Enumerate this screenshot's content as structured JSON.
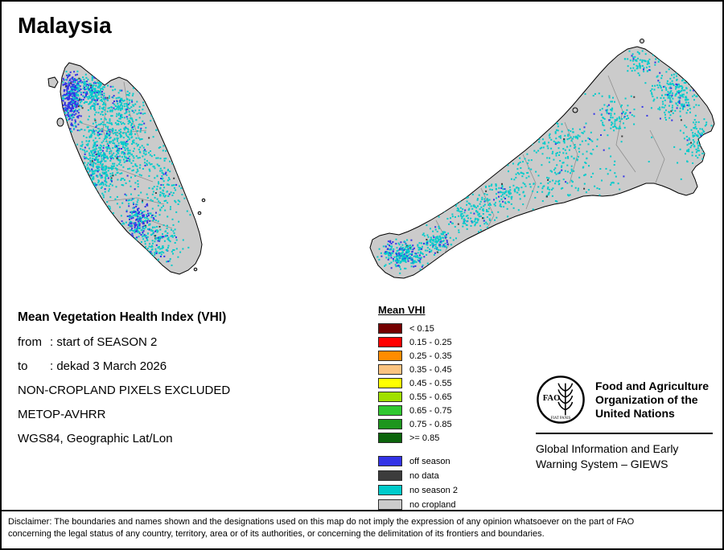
{
  "page": {
    "title": "Malaysia"
  },
  "meta": {
    "heading": "Mean Vegetation Health Index (VHI)",
    "from_label": "from",
    "from_value": ": start of SEASON 2",
    "to_label": "to",
    "to_value": ": dekad 3 March 2026",
    "exclusion": "NON-CROPLAND PIXELS EXCLUDED",
    "sensor": "METOP-AVHRR",
    "projection": "WGS84, Geographic Lat/Lon"
  },
  "legend": {
    "title": "Mean VHI",
    "classes": [
      {
        "label": "< 0.15",
        "color": "#740000"
      },
      {
        "label": "0.15 - 0.25",
        "color": "#FF0000"
      },
      {
        "label": "0.25 - 0.35",
        "color": "#FF8C00"
      },
      {
        "label": "0.35 - 0.45",
        "color": "#FBC380"
      },
      {
        "label": "0.45 - 0.55",
        "color": "#FFFF00"
      },
      {
        "label": "0.55 - 0.65",
        "color": "#A0E000"
      },
      {
        "label": "0.65 - 0.75",
        "color": "#30C830"
      },
      {
        "label": "0.75 - 0.85",
        "color": "#1E961E"
      },
      {
        "label": ">= 0.85",
        "color": "#0C640C"
      }
    ],
    "extra": [
      {
        "label": "off season",
        "color": "#3333E6"
      },
      {
        "label": "no data",
        "color": "#3C3C3C"
      },
      {
        "label": "no season 2",
        "color": "#00CBCB"
      },
      {
        "label": "no cropland",
        "color": "#CBCBCB"
      }
    ]
  },
  "fao": {
    "logo_acronym": "FAO",
    "logo_motto": "FIAT PANIS",
    "name_lines": [
      "Food and Agriculture",
      "Organization of the",
      "United Nations"
    ],
    "giews_lines": [
      "Global Information and Early",
      "Warning System – GIEWS"
    ]
  },
  "disclaimer_lines": [
    "Disclaimer: The boundaries and names shown and the designations used on this map do not imply the expression of any opinion whatsoever on the part of FAO",
    "concerning the legal status of any country, territory, area or of its authorities, or concerning the delimitation of its frontiers and boundaries."
  ],
  "map": {
    "land_color": "#CBCBCB",
    "coastline_color": "#000000"
  }
}
